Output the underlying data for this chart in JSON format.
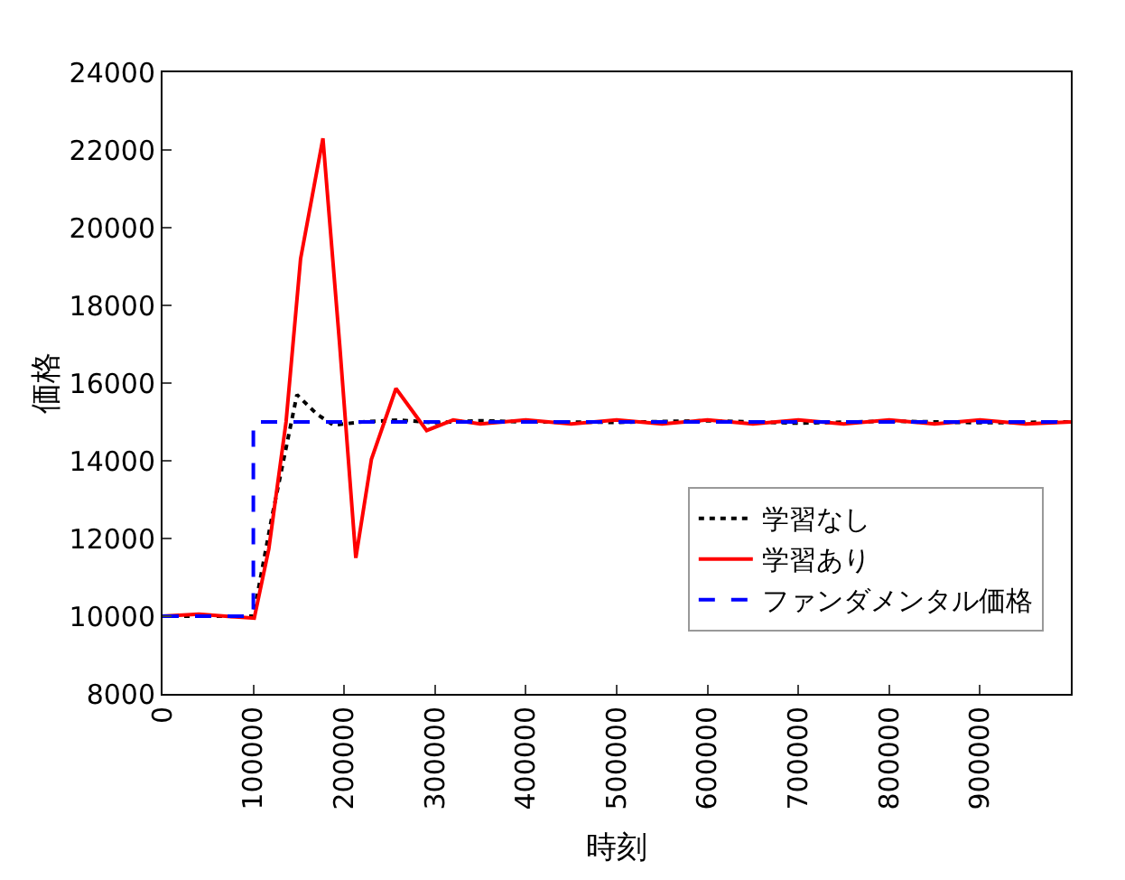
{
  "chart_data": {
    "type": "line",
    "xlabel": "時刻",
    "ylabel": "価格",
    "xlim": [
      0,
      1000000
    ],
    "xticks": [
      0,
      100000,
      200000,
      300000,
      400000,
      500000,
      600000,
      700000,
      800000,
      900000
    ],
    "ylim": [
      8000,
      24000
    ],
    "yticks": [
      8000,
      10000,
      12000,
      14000,
      16000,
      18000,
      20000,
      22000,
      24000
    ],
    "legend": "bottom right",
    "series": [
      {
        "name": "学習なし",
        "color": "#000000",
        "line_style": "dotted",
        "x": [
          0,
          50000,
          100000,
          120000,
          148000,
          170000,
          188000,
          220000,
          260000,
          300000,
          350000,
          400000,
          500000,
          600000,
          700000,
          800000,
          900000,
          1000000
        ],
        "values": [
          10000,
          10000,
          10000,
          12500,
          15700,
          15200,
          14920,
          15000,
          15050,
          14980,
          15030,
          15000,
          14990,
          15030,
          14970,
          15020,
          14980,
          15000
        ]
      },
      {
        "name": "学習あり",
        "color": "#ff0000",
        "line_style": "solid",
        "x": [
          0,
          40000,
          80000,
          101000,
          117000,
          136000,
          152000,
          176600,
          195000,
          212800,
          230000,
          257000,
          290800,
          320000,
          350000,
          400000,
          450000,
          500000,
          550000,
          600000,
          650000,
          700000,
          750000,
          800000,
          850000,
          900000,
          950000,
          1000000
        ],
        "values": [
          10000,
          10050,
          9980,
          9950,
          11730,
          15000,
          19200,
          22300,
          17000,
          11500,
          14040,
          15860,
          14780,
          15050,
          14950,
          15050,
          14950,
          15050,
          14950,
          15050,
          14950,
          15050,
          14950,
          15050,
          14950,
          15050,
          14950,
          15000
        ]
      },
      {
        "name": "ファンダメンタル価格",
        "color": "#0000ff",
        "line_style": "dashed",
        "x": [
          0,
          100000,
          100000,
          1000000
        ],
        "values": [
          10000,
          10000,
          15000,
          15000
        ]
      }
    ]
  }
}
